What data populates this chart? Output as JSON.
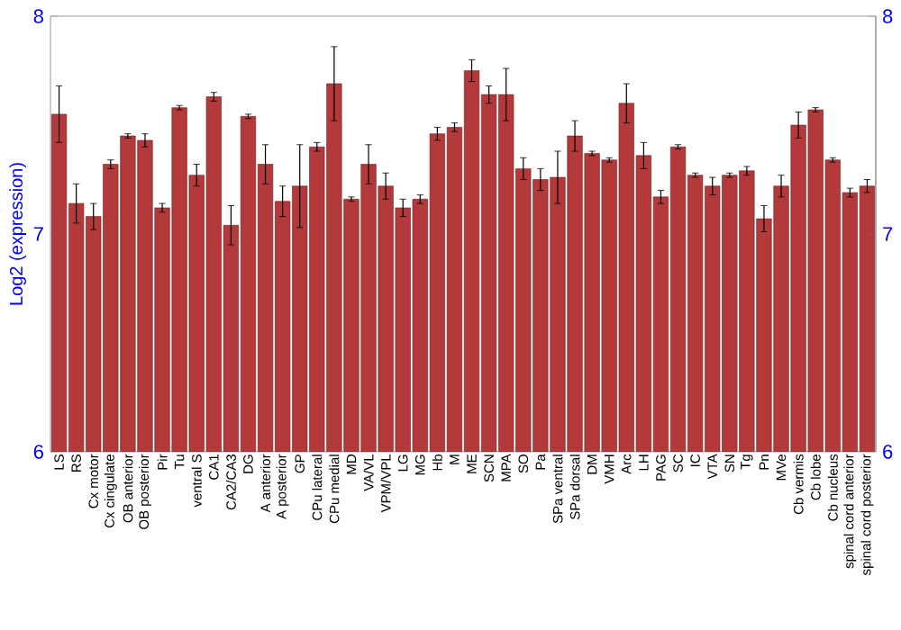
{
  "chart_data": {
    "type": "bar",
    "ylabel": "Log2 (expression)",
    "categories": [
      "LS",
      "RS",
      "Cx motor",
      "Cx cingulate",
      "OB anterior",
      "OB posterior",
      "Pir",
      "Tu",
      "ventral S",
      "CA1",
      "CA2/CA3",
      "DG",
      "A anterior",
      "A posterior",
      "GP",
      "CPu lateral",
      "CPu medial",
      "MD",
      "VA/VL",
      "VPM/VPL",
      "LG",
      "MG",
      "Hb",
      "M",
      "ME",
      "SCN",
      "MPA",
      "SO",
      "Pa",
      "SPa ventral",
      "SPa dorsal",
      "DM",
      "VMH",
      "Arc",
      "LH",
      "PAG",
      "SC",
      "IC",
      "VTA",
      "SN",
      "Tg",
      "Pn",
      "MVe",
      "Cb vermis",
      "Cb lobe",
      "Cb nucleus",
      "spinal cord anterior",
      "spinal cord posterior"
    ],
    "values": [
      7.55,
      7.14,
      7.08,
      7.32,
      7.45,
      7.43,
      7.12,
      7.58,
      7.27,
      7.63,
      7.04,
      7.54,
      7.32,
      7.15,
      7.22,
      7.4,
      7.69,
      7.16,
      7.32,
      7.22,
      7.12,
      7.16,
      7.46,
      7.49,
      7.75,
      7.64,
      7.64,
      7.3,
      7.25,
      7.26,
      7.45,
      7.37,
      7.34,
      7.6,
      7.36,
      7.17,
      7.4,
      7.27,
      7.22,
      7.27,
      7.29,
      7.07,
      7.22,
      7.5,
      7.57,
      7.34,
      7.19,
      7.22
    ],
    "errors": [
      0.13,
      0.09,
      0.06,
      0.02,
      0.01,
      0.03,
      0.02,
      0.01,
      0.05,
      0.02,
      0.09,
      0.01,
      0.09,
      0.07,
      0.19,
      0.02,
      0.17,
      0.01,
      0.09,
      0.06,
      0.04,
      0.02,
      0.03,
      0.02,
      0.05,
      0.04,
      0.12,
      0.05,
      0.05,
      0.12,
      0.07,
      0.01,
      0.01,
      0.09,
      0.06,
      0.03,
      0.01,
      0.01,
      0.04,
      0.01,
      0.02,
      0.06,
      0.05,
      0.06,
      0.01,
      0.01,
      0.02,
      0.03
    ],
    "color": "#b3393a",
    "ylim": [
      6,
      8
    ],
    "yticks": [
      6,
      7,
      8
    ],
    "y2lim": [
      6,
      8
    ],
    "y2ticks": [
      6,
      7,
      8
    ]
  }
}
